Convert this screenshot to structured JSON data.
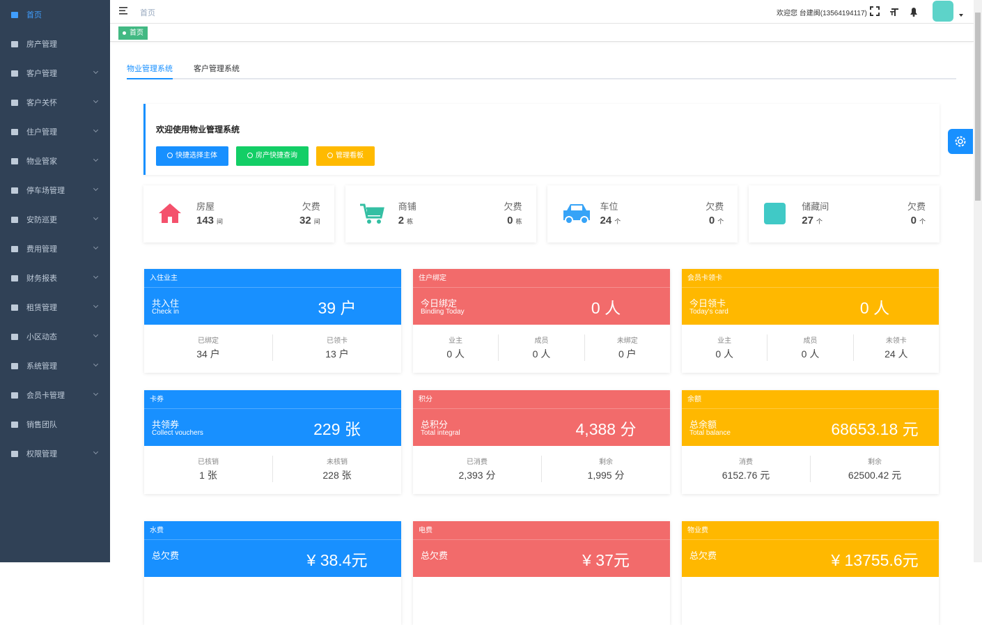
{
  "sidebar": {
    "items": [
      {
        "label": "首页",
        "expandable": false,
        "active": true
      },
      {
        "label": "房产管理",
        "expandable": false
      },
      {
        "label": "客户管理",
        "expandable": true
      },
      {
        "label": "客户关怀",
        "expandable": true
      },
      {
        "label": "住户管理",
        "expandable": true
      },
      {
        "label": "物业管家",
        "expandable": true
      },
      {
        "label": "停车场管理",
        "expandable": true
      },
      {
        "label": "安防巡更",
        "expandable": true
      },
      {
        "label": "费用管理",
        "expandable": true
      },
      {
        "label": "财务报表",
        "expandable": true
      },
      {
        "label": "租赁管理",
        "expandable": true
      },
      {
        "label": "小区动态",
        "expandable": true
      },
      {
        "label": "系统管理",
        "expandable": true
      },
      {
        "label": "会员卡管理",
        "expandable": true
      },
      {
        "label": "销售团队",
        "expandable": false
      },
      {
        "label": "权限管理",
        "expandable": true
      }
    ]
  },
  "topbar": {
    "breadcrumb": "首页",
    "welcome": "欢迎您 台建闽(13564194117)"
  },
  "tags": [
    "首页"
  ],
  "tabs": [
    "物业管理系统",
    "客户管理系统"
  ],
  "welcome_panel": {
    "title": "欢迎使用物业管理系统",
    "buttons": [
      {
        "label": "快捷选择主体",
        "color": "#1890ff"
      },
      {
        "label": "房产快捷查询",
        "color": "#13ce66"
      },
      {
        "label": "管理看板",
        "color": "#ffba00"
      }
    ]
  },
  "summary": [
    {
      "label": "房屋",
      "count": "143",
      "unit": "间",
      "debt_label": "欠费",
      "debt": "32",
      "debt_unit": "间",
      "color": "#f4516c"
    },
    {
      "label": "商铺",
      "count": "2",
      "unit": "栋",
      "debt_label": "欠费",
      "debt": "0",
      "debt_unit": "栋",
      "color": "#34bfa3"
    },
    {
      "label": "车位",
      "count": "24",
      "unit": "个",
      "debt_label": "欠费",
      "debt": "0",
      "debt_unit": "个",
      "color": "#36a3f7"
    },
    {
      "label": "储藏间",
      "count": "27",
      "unit": "个",
      "debt_label": "欠费",
      "debt": "0",
      "debt_unit": "个",
      "color": "#40c9c6"
    }
  ],
  "cards": [
    {
      "header": "入住业主",
      "title": "共入住",
      "subtitle": "Check in",
      "value": "39 户",
      "color": "#1890ff",
      "stats": [
        {
          "label": "已绑定",
          "value": "34 户"
        },
        {
          "label": "已领卡",
          "value": "13 户"
        }
      ]
    },
    {
      "header": "住户绑定",
      "title": "今日绑定",
      "subtitle": "Binding Today",
      "value": "0 人",
      "color": "#f26b6b",
      "stats": [
        {
          "label": "业主",
          "value": "0 人"
        },
        {
          "label": "成员",
          "value": "0 人"
        },
        {
          "label": "未绑定",
          "value": "0 户"
        }
      ]
    },
    {
      "header": "会员卡领卡",
      "title": "今日领卡",
      "subtitle": "Today's card",
      "value": "0 人",
      "color": "#ffb800",
      "stats": [
        {
          "label": "业主",
          "value": "0 人"
        },
        {
          "label": "成员",
          "value": "0 人"
        },
        {
          "label": "未领卡",
          "value": "24 人"
        }
      ]
    },
    {
      "header": "卡券",
      "title": "共领券",
      "subtitle": "Collect vouchers",
      "value": "229 张",
      "color": "#1890ff",
      "stats": [
        {
          "label": "已核销",
          "value": "1 张"
        },
        {
          "label": "未核销",
          "value": "228 张"
        }
      ]
    },
    {
      "header": "积分",
      "title": "总积分",
      "subtitle": "Total integral",
      "value": "4,388 分",
      "color": "#f26b6b",
      "stats": [
        {
          "label": "已消费",
          "value": "2,393 分"
        },
        {
          "label": "剩余",
          "value": "1,995 分"
        }
      ]
    },
    {
      "header": "余额",
      "title": "总余额",
      "subtitle": "Total balance",
      "value": "68653.18 元",
      "color": "#ffb800",
      "stats": [
        {
          "label": "消费",
          "value": "6152.76 元"
        },
        {
          "label": "剩余",
          "value": "62500.42 元"
        }
      ]
    },
    {
      "header": "水费",
      "title": "总欠费",
      "value": "¥ 38.4元",
      "color": "#1890ff",
      "stats": []
    },
    {
      "header": "电费",
      "title": "总欠费",
      "value": "¥ 37元",
      "color": "#f26b6b",
      "stats": []
    },
    {
      "header": "物业费",
      "title": "总欠费",
      "value": "¥ 13755.6元",
      "color": "#ffb800",
      "stats": []
    }
  ]
}
